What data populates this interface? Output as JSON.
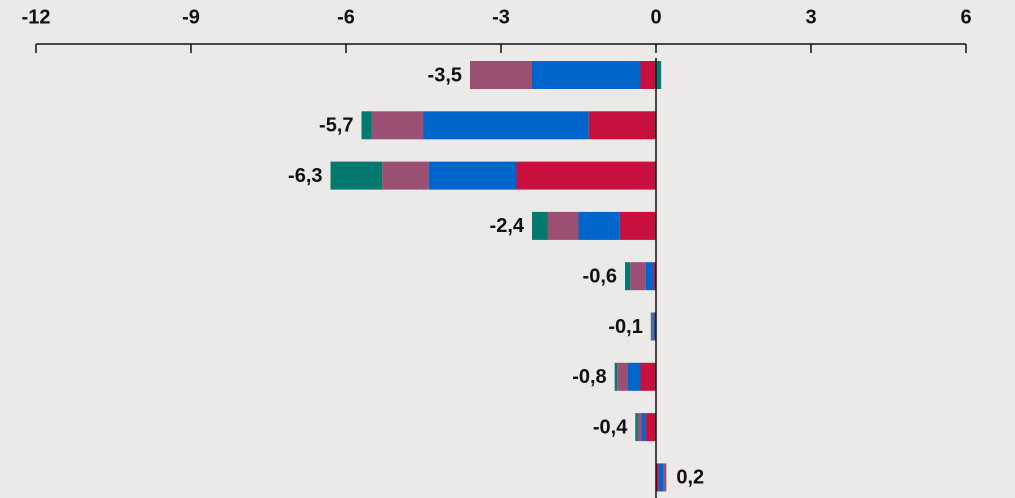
{
  "chart_data": {
    "type": "stacked_barh",
    "xlim": [
      -12,
      6
    ],
    "xticks": [
      -12,
      -9,
      -6,
      -3,
      0,
      3,
      6
    ],
    "values": [
      -3.5,
      -5.7,
      -6.3,
      -2.4,
      -0.6,
      -0.1,
      -0.8,
      -0.4,
      0.2
    ],
    "value_labels": [
      "-3,5",
      "-5,7",
      "-6,3",
      "-2,4",
      "-0,6",
      "-0,1",
      "-0,8",
      "-0,4",
      "0,2"
    ],
    "series": [
      {
        "color": "#c8103e",
        "values": [
          -0.3,
          -1.3,
          -2.7,
          -0.7,
          -0.05,
          0,
          -0.3,
          -0.2,
          0.05
        ]
      },
      {
        "color": "#0066cc",
        "values": [
          -2.1,
          -3.2,
          -1.7,
          -0.8,
          -0.15,
          -0.05,
          -0.25,
          -0.08,
          0.1
        ]
      },
      {
        "color": "#9b4f73",
        "values": [
          -1.2,
          -1.0,
          -0.9,
          -0.6,
          -0.3,
          -0.03,
          -0.2,
          -0.07,
          0.05
        ]
      },
      {
        "color": "#047a6e",
        "values": [
          0.1,
          -0.2,
          -1.0,
          -0.3,
          -0.1,
          -0.02,
          -0.05,
          -0.05,
          0
        ]
      }
    ]
  }
}
